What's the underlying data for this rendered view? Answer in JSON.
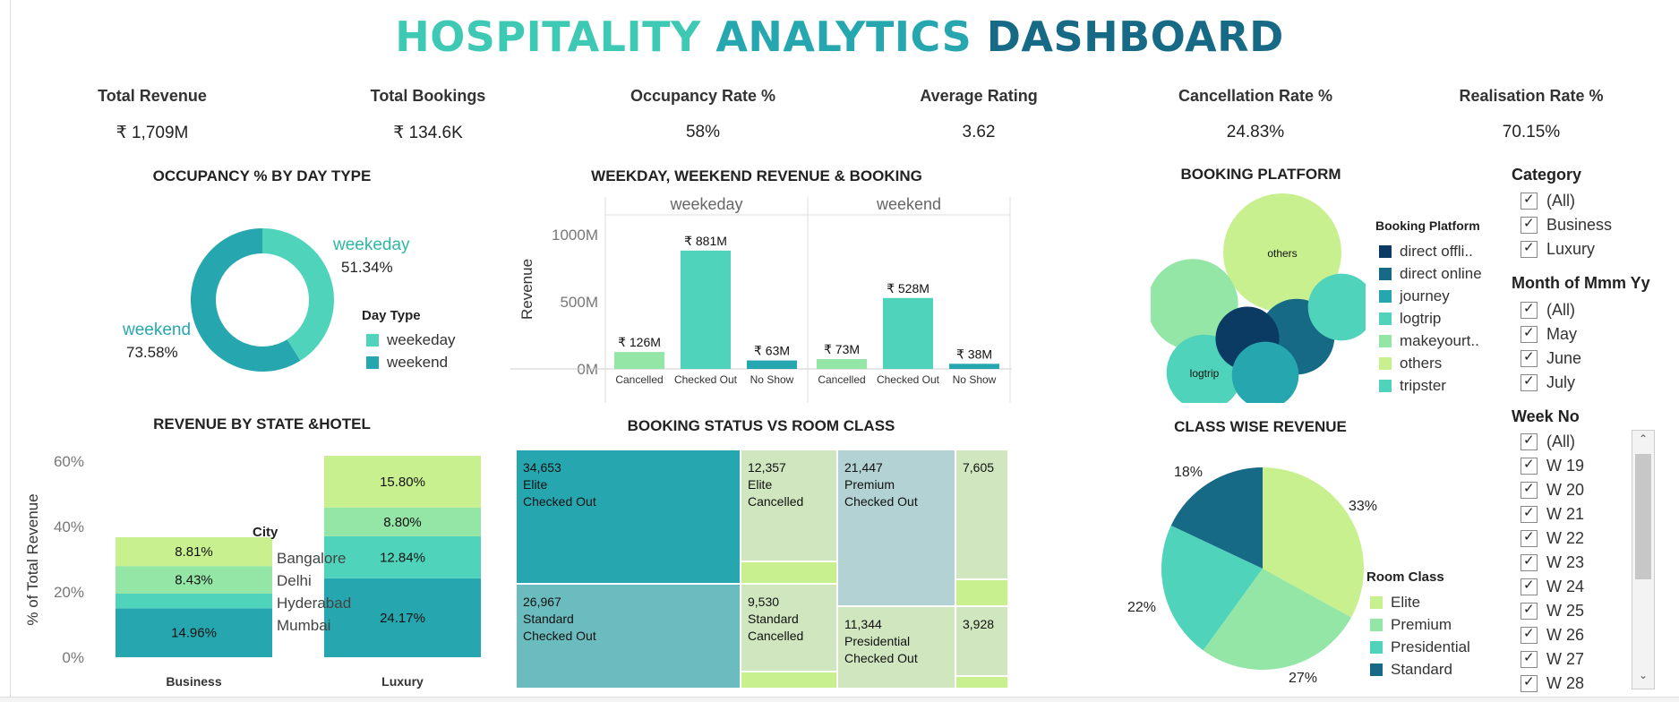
{
  "title": {
    "w1": "HOSPITALITY",
    "w2": "ANALYTICS",
    "w3": "DASHBOARD"
  },
  "kpis": [
    {
      "label": "Total Revenue",
      "value": "₹ 1,709M"
    },
    {
      "label": "Total Bookings",
      "value": "₹ 134.6K"
    },
    {
      "label": "Occupancy Rate %",
      "value": "58%"
    },
    {
      "label": "Average Rating",
      "value": "3.62"
    },
    {
      "label": "Cancellation Rate %",
      "value": "24.83%"
    },
    {
      "label": "Realisation Rate %",
      "value": "70.15%"
    }
  ],
  "colors": {
    "dark_navy": "#0b3a63",
    "dark_teal": "#166a86",
    "teal": "#26a7b0",
    "aqua": "#4fd4bb",
    "mint": "#93e6a6",
    "lime": "#c8f08e",
    "pale_teal": "#6bbcbe",
    "pale_green": "#cfe6bf",
    "pale_blue": "#b3d2d3"
  },
  "occupancy": {
    "title": "OCCUPANCY % BY DAY TYPE",
    "legend_title": "Day Type",
    "legend": [
      "weekeday",
      "weekend"
    ],
    "weekday_label": "weekeday",
    "weekday_value": "51.34%",
    "weekend_label": "weekend",
    "weekend_value": "73.58%"
  },
  "wkrev": {
    "title": "WEEKDAY, WEEKEND REVENUE &  BOOKING",
    "ylabel": "Revenue",
    "groups": [
      "weekeday",
      "weekend"
    ],
    "ticks": [
      "1000M",
      "500M",
      "0M"
    ]
  },
  "platform": {
    "title": "BOOKING PLATFORM",
    "legend_title": "Booking Platform",
    "legend": [
      "direct offli..",
      "direct online",
      "journey",
      "logtrip",
      "makeyourt..",
      "others",
      "tripster"
    ],
    "bubble_labels": {
      "others": "others",
      "logtrip": "logtrip"
    }
  },
  "filters": {
    "category_title": "Category",
    "category": [
      "(All)",
      "Business",
      "Luxury"
    ],
    "month_title": "Month of Mmm Yy",
    "month": [
      "(All)",
      "May",
      "June",
      "July"
    ],
    "week_title": "Week No",
    "week": [
      "(All)",
      "W 19",
      "W 20",
      "W 21",
      "W 22",
      "W 23",
      "W 24",
      "W 25",
      "W 26",
      "W 27",
      "W 28"
    ]
  },
  "state_hotel": {
    "title": "REVENUE BY STATE &HOTEL",
    "ylabel": "% of Total  Revenue",
    "ticks": [
      "60%",
      "40%",
      "20%",
      "0%"
    ],
    "legend_title": "City",
    "legend": [
      "Bangalore",
      "Delhi",
      "Hyderabad",
      "Mumbai"
    ]
  },
  "treemap": {
    "title": "BOOKING STATUS VS ROOM CLASS",
    "cells": [
      {
        "l1": "34,653",
        "l2": "Elite",
        "l3": "Checked Out"
      },
      {
        "l1": "12,357",
        "l2": "Elite",
        "l3": "Cancelled"
      },
      {
        "l1": "21,447",
        "l2": "Premium",
        "l3": "Checked Out"
      },
      {
        "l1": "7,605",
        "l2": "",
        "l3": ""
      },
      {
        "l1": "26,967",
        "l2": "Standard",
        "l3": "Checked Out"
      },
      {
        "l1": "9,530",
        "l2": "Standard",
        "l3": "Cancelled"
      },
      {
        "l1": "11,344",
        "l2": "Presidential",
        "l3": "Checked Out"
      },
      {
        "l1": "3,928",
        "l2": "",
        "l3": ""
      }
    ]
  },
  "classwise": {
    "title": "CLASS WISE REVENUE",
    "legend_title": "Room Class",
    "legend": [
      "Elite",
      "Premium",
      "Presidential",
      "Standard"
    ]
  },
  "chart_data": [
    {
      "type": "pie",
      "title": "OCCUPANCY % BY DAY TYPE",
      "categories": [
        "weekeday",
        "weekend"
      ],
      "values": [
        51.34,
        73.58
      ],
      "display": "donut"
    },
    {
      "type": "bar",
      "title": "WEEKDAY, WEEKEND REVENUE &  BOOKING",
      "ylabel": "Revenue",
      "ylim": [
        0,
        1000
      ],
      "series": [
        {
          "name": "weekeday",
          "categories": [
            "Cancelled",
            "Checked Out",
            "No Show"
          ],
          "values": [
            126,
            881,
            63
          ],
          "labels": [
            "₹ 126M",
            "₹ 881M",
            "₹ 63M"
          ]
        },
        {
          "name": "weekend",
          "categories": [
            "Cancelled",
            "Checked Out",
            "No Show"
          ],
          "values": [
            73,
            528,
            38
          ],
          "labels": [
            "₹ 73M",
            "₹ 528M",
            "₹ 38M"
          ]
        }
      ]
    },
    {
      "type": "scatter",
      "title": "BOOKING PLATFORM",
      "display": "packed bubbles",
      "categories": [
        "others",
        "makeyourt..",
        "logtrip",
        "direct online",
        "direct offli..",
        "journey",
        "tripster"
      ],
      "values": [
        1.0,
        0.59,
        0.41,
        0.41,
        0.29,
        0.32,
        0.32
      ]
    },
    {
      "type": "bar",
      "title": "REVENUE BY STATE &HOTEL",
      "stacked": true,
      "ylabel": "% of Total  Revenue",
      "ylim": [
        0,
        60
      ],
      "categories": [
        "Business",
        "Luxury"
      ],
      "series": [
        {
          "name": "Mumbai",
          "values": [
            14.96,
            24.17
          ]
        },
        {
          "name": "Hyderabad",
          "values": [
            4.5,
            12.84
          ]
        },
        {
          "name": "Delhi",
          "values": [
            8.43,
            8.8
          ]
        },
        {
          "name": "Bangalore",
          "values": [
            8.81,
            15.8
          ]
        }
      ],
      "labels": [
        [
          "14.96%",
          "",
          "8.43%",
          "8.81%"
        ],
        [
          "24.17%",
          "12.84%",
          "8.80%",
          "15.80%"
        ]
      ]
    },
    {
      "type": "table",
      "title": "BOOKING STATUS VS ROOM CLASS",
      "display": "treemap",
      "rows": [
        {
          "class": "Elite",
          "status": "Checked Out",
          "value": 34653
        },
        {
          "class": "Elite",
          "status": "Cancelled",
          "value": 12357
        },
        {
          "class": "Premium",
          "status": "Checked Out",
          "value": 21447
        },
        {
          "class": "Premium",
          "status": "Cancelled",
          "value": 7605
        },
        {
          "class": "Standard",
          "status": "Checked Out",
          "value": 26967
        },
        {
          "class": "Standard",
          "status": "Cancelled",
          "value": 9530
        },
        {
          "class": "Presidential",
          "status": "Checked Out",
          "value": 11344
        },
        {
          "class": "Presidential",
          "status": "Cancelled",
          "value": 3928
        }
      ]
    },
    {
      "type": "pie",
      "title": "CLASS WISE REVENUE",
      "categories": [
        "Elite",
        "Premium",
        "Presidential",
        "Standard"
      ],
      "values": [
        33,
        27,
        22,
        18
      ],
      "labels": [
        "33%",
        "27%",
        "22%",
        "18%"
      ]
    }
  ]
}
